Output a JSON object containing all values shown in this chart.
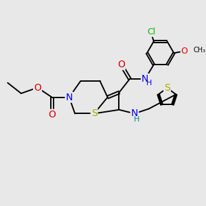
{
  "bg_color": "#e8e8e8",
  "bond_color": "#000000",
  "bond_width": 1.4,
  "atom_colors": {
    "C": "#000000",
    "N": "#0000ee",
    "O": "#dd0000",
    "S": "#aaaa00",
    "Cl": "#00bb00",
    "H": "#008888"
  },
  "font_size": 9,
  "fig_width": 3.0,
  "fig_height": 3.0,
  "dpi": 100
}
